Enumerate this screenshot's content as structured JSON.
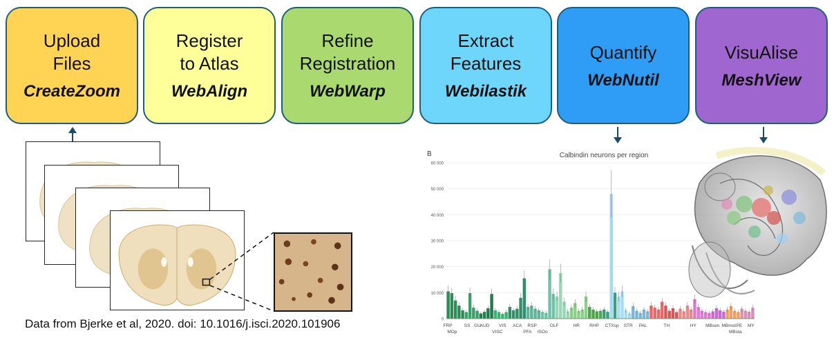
{
  "steps": [
    {
      "title": "Upload\nFiles",
      "tool": "CreateZoom",
      "color": "#ffd454"
    },
    {
      "title": "Register\nto Atlas",
      "tool": "WebAlign",
      "color": "#ffff99"
    },
    {
      "title": "Refine\nRegistration",
      "tool": "WebWarp",
      "color": "#a9d96f"
    },
    {
      "title": "Extract\nFeatures",
      "tool": "Webilastik",
      "color": "#6fd6fb"
    },
    {
      "title": "Quantify",
      "tool": "WebNutil",
      "color": "#2f9df5"
    },
    {
      "title": "VisuAlise",
      "tool": "MeshView",
      "color": "#a066cf"
    }
  ],
  "caption": "Data from Bjerke et al, 2020. doi: 10.1016/j.isci.2020.101906",
  "chart_data": {
    "type": "bar",
    "panel_label": "B",
    "title": "Calbindin neurons per region",
    "ylim": [
      0,
      60000
    ],
    "yticks": [
      "0",
      "10 000",
      "20 000",
      "30 000",
      "40 000",
      "50 000",
      "60 000"
    ],
    "region_labels_top": [
      "FRP",
      "SS",
      "GU",
      "AUD",
      "VIS",
      "ACA",
      "RSP",
      "OLF",
      "HR",
      "RHP",
      "CTXsp",
      "STR",
      "PAL",
      "TH",
      "HY",
      "MBsen",
      "MBmot",
      "PE",
      "MY"
    ],
    "region_labels_bottom": [
      "MOp",
      "VISC",
      "PFA",
      "ISOo",
      "MBsta"
    ],
    "values": [
      10500,
      9800,
      7000,
      5000,
      3200,
      2500,
      9800,
      4200,
      3000,
      2000,
      2600,
      4000,
      9500,
      3200,
      2500,
      1800,
      2500,
      4500,
      3200,
      3800,
      8000,
      15500,
      4500,
      5000,
      3800,
      3200,
      2600,
      2200,
      19000,
      9500,
      8500,
      17500,
      6500,
      2800,
      4200,
      6000,
      3000,
      3500,
      8500,
      4500,
      3500,
      2800,
      3000,
      3500,
      2600,
      48000,
      10000,
      8500,
      10500,
      3200,
      2000,
      4800,
      3000,
      2200,
      3500,
      2800,
      5000,
      4200,
      3500,
      6500,
      5000,
      3000,
      4000,
      2500,
      3800,
      2800,
      5000,
      3500,
      7500,
      4500,
      3000,
      2500,
      2200,
      2800,
      4000,
      3200,
      2600,
      3500,
      4800,
      3000,
      2500,
      3800,
      3000,
      2600,
      4200
    ]
  }
}
